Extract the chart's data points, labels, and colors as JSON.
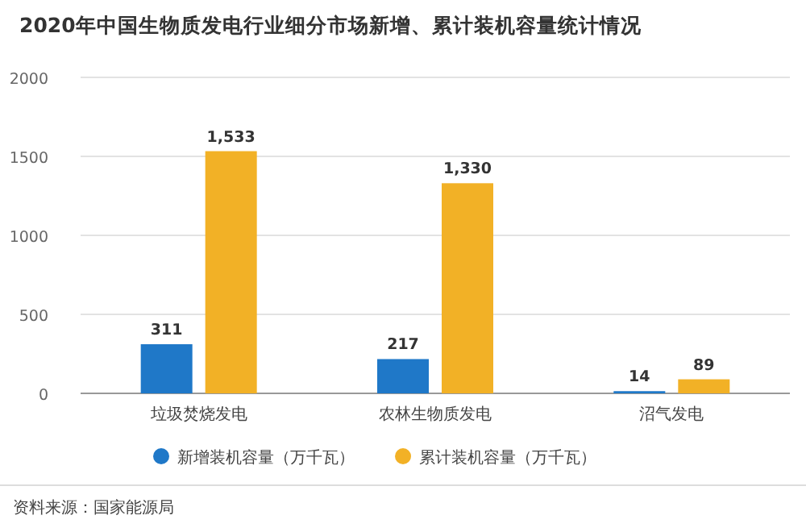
{
  "chart_data": {
    "type": "bar",
    "title": "2020年中国生物质发电行业细分市场新增、累计装机容量统计情况",
    "categories": [
      "垃圾焚烧发电",
      "农林生物质发电",
      "沼气发电"
    ],
    "series": [
      {
        "name": "新增装机容量（万千瓦）",
        "color": "#1f78c8",
        "values": [
          311,
          217,
          14
        ],
        "value_labels": [
          "311",
          "217",
          "14"
        ]
      },
      {
        "name": "累计装机容量（万千瓦）",
        "color": "#f2b126",
        "values": [
          1533,
          1330,
          89
        ],
        "value_labels": [
          "1,533",
          "1,330",
          "89"
        ]
      }
    ],
    "ylim": [
      0,
      2000
    ],
    "yticks": [
      0,
      500,
      1000,
      1500,
      2000
    ],
    "grid": "y",
    "legend": "bottom",
    "annotations": [
      "资料来源：国家能源局"
    ]
  }
}
